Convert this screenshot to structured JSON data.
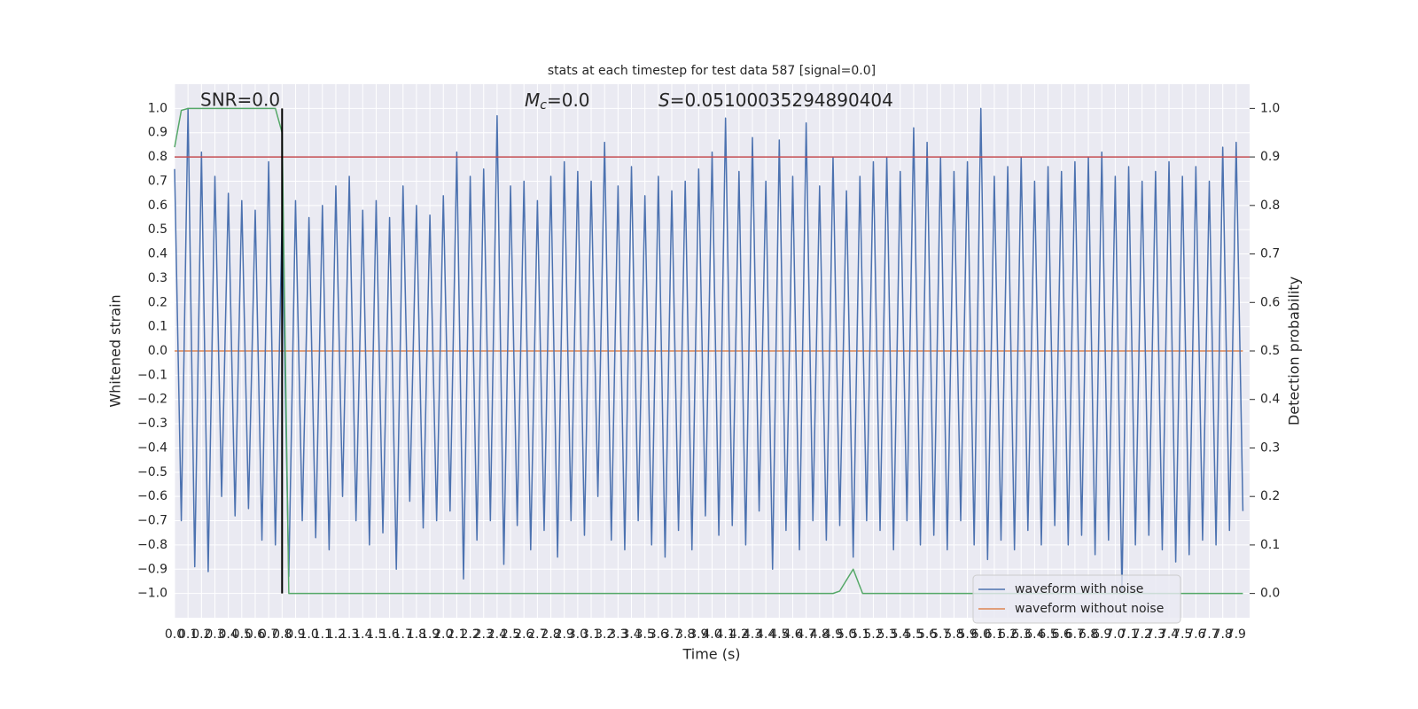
{
  "chart_data": {
    "type": "line",
    "title": "stats at each timestep for test data 587 [signal=0.0]",
    "xlabel": "Time (s)",
    "ylabel": "Whitened strain",
    "y2label": "Detection probability",
    "annotations": [
      {
        "text": "SNR=0.0"
      },
      {
        "symbol": "M",
        "subscript": "c",
        "text": "=0.0"
      },
      {
        "symbol": "S",
        "text": "=0.05100035294890404"
      }
    ],
    "xlim": [
      0,
      8.0
    ],
    "ylim": [
      -1.1,
      1.1
    ],
    "y2lim": [
      -0.05,
      1.05
    ],
    "xticks": [
      {
        "value": 0,
        "label": "0.0"
      },
      0.1,
      0.2,
      0.3,
      0.4,
      0.5,
      0.6,
      0.7,
      0.8,
      0.9,
      {
        "value": 1,
        "label": "1.0"
      },
      1.1,
      1.2,
      1.3,
      1.4,
      1.5,
      1.6,
      1.7,
      1.8,
      1.9,
      {
        "value": 2,
        "label": "2.0"
      },
      2.1,
      2.2,
      2.3,
      2.4,
      2.5,
      2.6,
      2.7,
      2.8,
      2.9,
      {
        "value": 3,
        "label": "3.0"
      },
      3.1,
      3.2,
      3.3,
      3.4,
      3.5,
      3.6,
      3.7,
      3.8,
      3.9,
      {
        "value": 4,
        "label": "4.0"
      },
      4.1,
      4.2,
      4.3,
      4.4,
      4.5,
      4.6,
      4.7,
      4.8,
      4.9,
      {
        "value": 5,
        "label": "5.0"
      },
      5.1,
      5.2,
      5.3,
      5.4,
      5.5,
      5.6,
      5.7,
      5.8,
      5.9,
      {
        "value": 6,
        "label": "6.0"
      },
      6.1,
      6.2,
      6.3,
      6.4,
      6.5,
      6.6,
      6.7,
      6.8,
      6.9,
      {
        "value": 7,
        "label": "7.0"
      },
      7.1,
      7.2,
      7.3,
      7.4,
      7.5,
      7.6,
      7.7,
      7.8,
      7.9
    ],
    "yticks": [
      {
        "value": -1,
        "label": "−1.0"
      },
      {
        "value": -0.9,
        "label": "−0.9"
      },
      {
        "value": -0.8,
        "label": "−0.8"
      },
      {
        "value": -0.7,
        "label": "−0.7"
      },
      {
        "value": -0.6,
        "label": "−0.6"
      },
      {
        "value": -0.5,
        "label": "−0.5"
      },
      {
        "value": -0.4,
        "label": "−0.4"
      },
      {
        "value": -0.3,
        "label": "−0.3"
      },
      {
        "value": -0.2,
        "label": "−0.2"
      },
      {
        "value": -0.1,
        "label": "−0.1"
      },
      {
        "value": 0,
        "label": "0.0"
      },
      0.1,
      0.2,
      0.3,
      0.4,
      0.5,
      0.6,
      0.7,
      0.8,
      0.9,
      {
        "value": 1,
        "label": "1.0"
      }
    ],
    "y2ticks": [
      {
        "value": 0,
        "label": "0.0"
      },
      0.1,
      0.2,
      0.3,
      0.4,
      0.5,
      0.6,
      0.7,
      0.8,
      0.9,
      {
        "value": 1,
        "label": "1.0"
      }
    ],
    "grid": true,
    "legend": "lower right",
    "series": [
      {
        "name": "waveform without noise",
        "color": "#dd8452",
        "x": [
          0,
          7.95
        ],
        "values": [
          0,
          0
        ]
      },
      {
        "name": "waveform with noise",
        "color": "#4c72b0",
        "x": [
          0,
          0.05,
          0.1,
          0.15,
          0.2,
          0.25,
          0.3,
          0.35,
          0.4,
          0.45,
          0.5,
          0.55,
          0.6,
          0.65,
          0.7,
          0.75,
          0.8,
          0.85,
          0.9,
          0.95,
          1.0,
          1.05,
          1.1,
          1.15,
          1.2,
          1.25,
          1.3,
          1.35,
          1.4,
          1.45,
          1.5,
          1.55,
          1.6,
          1.65,
          1.7,
          1.75,
          1.8,
          1.85,
          1.9,
          1.95,
          2.0,
          2.05,
          2.1,
          2.15,
          2.2,
          2.25,
          2.3,
          2.35,
          2.4,
          2.45,
          2.5,
          2.55,
          2.6,
          2.65,
          2.7,
          2.75,
          2.8,
          2.85,
          2.9,
          2.95,
          3.0,
          3.05,
          3.1,
          3.15,
          3.2,
          3.25,
          3.3,
          3.35,
          3.4,
          3.45,
          3.5,
          3.55,
          3.6,
          3.65,
          3.7,
          3.75,
          3.8,
          3.85,
          3.9,
          3.95,
          4.0,
          4.05,
          4.1,
          4.15,
          4.2,
          4.25,
          4.3,
          4.35,
          4.4,
          4.45,
          4.5,
          4.55,
          4.6,
          4.65,
          4.7,
          4.75,
          4.8,
          4.85,
          4.9,
          4.95,
          5.0,
          5.05,
          5.1,
          5.15,
          5.2,
          5.25,
          5.3,
          5.35,
          5.4,
          5.45,
          5.5,
          5.55,
          5.6,
          5.65,
          5.7,
          5.75,
          5.8,
          5.85,
          5.9,
          5.95,
          6.0,
          6.05,
          6.1,
          6.15,
          6.2,
          6.25,
          6.3,
          6.35,
          6.4,
          6.45,
          6.5,
          6.55,
          6.6,
          6.65,
          6.7,
          6.75,
          6.8,
          6.85,
          6.9,
          6.95,
          7.0,
          7.05,
          7.1,
          7.15,
          7.2,
          7.25,
          7.3,
          7.35,
          7.4,
          7.45,
          7.5,
          7.55,
          7.6,
          7.65,
          7.7,
          7.75,
          7.8,
          7.85,
          7.9,
          7.95
        ],
        "values": [
          0.75,
          -0.7,
          1.0,
          -0.89,
          0.82,
          -0.91,
          0.72,
          -0.6,
          0.65,
          -0.68,
          0.62,
          -0.65,
          0.58,
          -0.78,
          0.78,
          -0.8,
          0.55,
          -0.93,
          0.62,
          -0.7,
          0.55,
          -0.77,
          0.6,
          -0.82,
          0.68,
          -0.6,
          0.72,
          -0.7,
          0.58,
          -0.8,
          0.62,
          -0.75,
          0.55,
          -0.9,
          0.68,
          -0.62,
          0.6,
          -0.73,
          0.56,
          -0.7,
          0.64,
          -0.66,
          0.82,
          -0.94,
          0.72,
          -0.78,
          0.75,
          -0.7,
          0.97,
          -0.88,
          0.68,
          -0.72,
          0.7,
          -0.82,
          0.62,
          -0.74,
          0.72,
          -0.85,
          0.78,
          -0.7,
          0.74,
          -0.76,
          0.7,
          -0.6,
          0.86,
          -0.78,
          0.68,
          -0.82,
          0.76,
          -0.7,
          0.64,
          -0.8,
          0.72,
          -0.85,
          0.66,
          -0.74,
          0.7,
          -0.82,
          0.75,
          -0.68,
          0.82,
          -0.76,
          0.96,
          -0.72,
          0.74,
          -0.8,
          0.88,
          -0.66,
          0.7,
          -0.9,
          0.87,
          -0.74,
          0.72,
          -0.82,
          0.94,
          -0.7,
          0.68,
          -0.78,
          0.8,
          -0.72,
          0.66,
          -0.85,
          0.72,
          -0.7,
          0.78,
          -0.74,
          0.8,
          -0.82,
          0.74,
          -0.7,
          0.92,
          -0.8,
          0.86,
          -0.76,
          0.8,
          -0.82,
          0.74,
          -0.7,
          0.78,
          -0.8,
          1.0,
          -0.86,
          0.72,
          -0.78,
          0.76,
          -0.82,
          0.8,
          -0.74,
          0.7,
          -0.8,
          0.76,
          -0.72,
          0.74,
          -0.8,
          0.78,
          -0.76,
          0.8,
          -0.84,
          0.82,
          -0.78,
          0.72,
          -1.0,
          0.76,
          -0.8,
          0.7,
          -0.76,
          0.74,
          -0.82,
          0.78,
          -0.87,
          0.72,
          -0.84,
          0.76,
          -0.78,
          0.7,
          -0.8,
          0.84,
          -0.74,
          0.86,
          -0.66
        ]
      },
      {
        "color": "#55a868",
        "axis": "y2",
        "x": [
          0,
          0.05,
          0.1,
          0.75,
          0.8,
          0.85,
          4.9,
          4.95,
          5.05,
          5.12,
          7.95
        ],
        "values": [
          0.92,
          0.996,
          1.0,
          1.0,
          0.95,
          0.0,
          0.0,
          0.005,
          0.05,
          0.0,
          0.0
        ]
      }
    ],
    "threshold_line": {
      "axis": "y2",
      "value": 0.9,
      "color": "#c44e52"
    },
    "marker_line": {
      "x": 0.8,
      "color": "#000000"
    }
  }
}
